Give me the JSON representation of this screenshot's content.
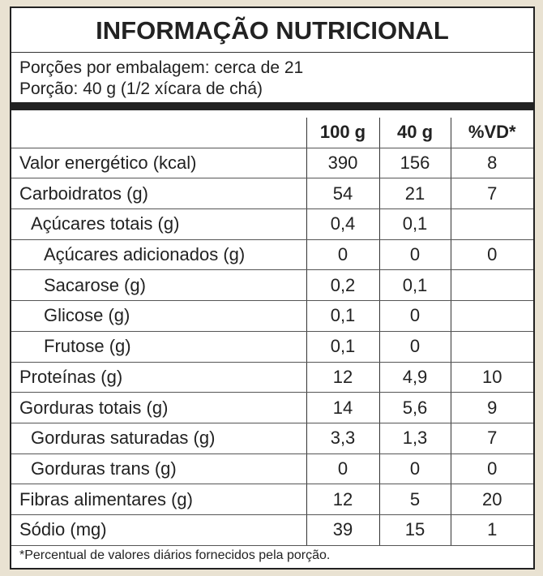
{
  "header": {
    "title": "INFORMAÇÃO NUTRICIONAL",
    "servings": "Porções por embalagem: cerca de 21",
    "portion": "Porção: 40 g (1/2 xícara de chá)"
  },
  "table": {
    "columns": [
      "100 g",
      "40 g",
      "%VD*"
    ],
    "rows": [
      [
        "Valor energético (kcal)",
        "390",
        "156",
        "8"
      ],
      [
        "Carboidratos (g)",
        "54",
        "21",
        "7"
      ],
      [
        "Açúcares totais (g)",
        "0,4",
        "0,1",
        null
      ],
      [
        "Açúcares adicionados (g)",
        "0",
        "0",
        "0"
      ],
      [
        "Sacarose (g)",
        "0,2",
        "0,1",
        null
      ],
      [
        "Glicose (g)",
        "0,1",
        "0",
        null
      ],
      [
        "Frutose (g)",
        "0,1",
        "0",
        null
      ],
      [
        "Proteínas (g)",
        "12",
        "4,9",
        "10"
      ],
      [
        "Gorduras totais (g)",
        "14",
        "5,6",
        "9"
      ],
      [
        "Gorduras saturadas (g)",
        "3,3",
        "1,3",
        "7"
      ],
      [
        "Gorduras trans (g)",
        "0",
        "0",
        "0"
      ],
      [
        "Fibras alimentares (g)",
        "12",
        "5",
        "20"
      ],
      [
        "Sódio (mg)",
        "39",
        "15",
        "1"
      ]
    ]
  },
  "footnote": "*Percentual de valores diários fornecidos pela porção."
}
